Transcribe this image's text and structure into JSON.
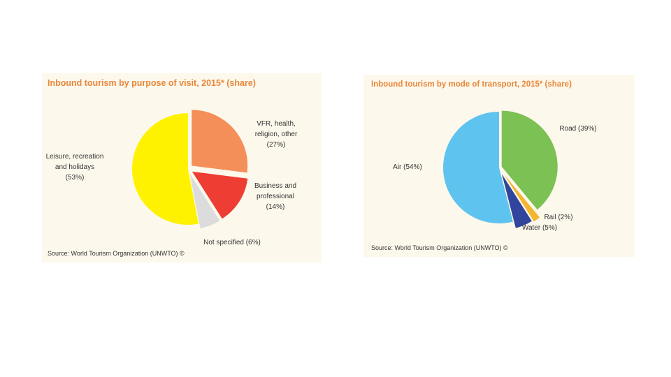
{
  "chart_data": [
    {
      "type": "pie",
      "title": "Inbound tourism by purpose of visit, 2015* (share)",
      "source": "Source: World Tourism Organization (UNWTO) ©",
      "slices": [
        {
          "label_lines": [
            "VFR, health,",
            "religion, other",
            "(27%)"
          ],
          "value": 27,
          "color": "#f58f5a"
        },
        {
          "label_lines": [
            "Business and",
            "professional",
            "(14%)"
          ],
          "value": 14,
          "color": "#ee3e33"
        },
        {
          "label_lines": [
            "Not specified  (6%)"
          ],
          "value": 6,
          "color": "#dcdcdc"
        },
        {
          "label_lines": [
            "Leisure, recreation",
            "and holidays",
            "(53%)"
          ],
          "value": 53,
          "color": "#fff200"
        }
      ]
    },
    {
      "type": "pie",
      "title": "Inbound tourism by mode of transport, 2015* (share)",
      "source": "Source: World Tourism Organization (UNWTO) ©",
      "slices": [
        {
          "label_lines": [
            "Road  (39%)"
          ],
          "value": 39,
          "color": "#7cc153"
        },
        {
          "label_lines": [
            "Rail  (2%)"
          ],
          "value": 2,
          "color": "#f4b52f"
        },
        {
          "label_lines": [
            "Water  (5%)"
          ],
          "value": 5,
          "color": "#30459b"
        },
        {
          "label_lines": [
            "Air  (54%)"
          ],
          "value": 54,
          "color": "#5fc3ef"
        }
      ]
    }
  ]
}
